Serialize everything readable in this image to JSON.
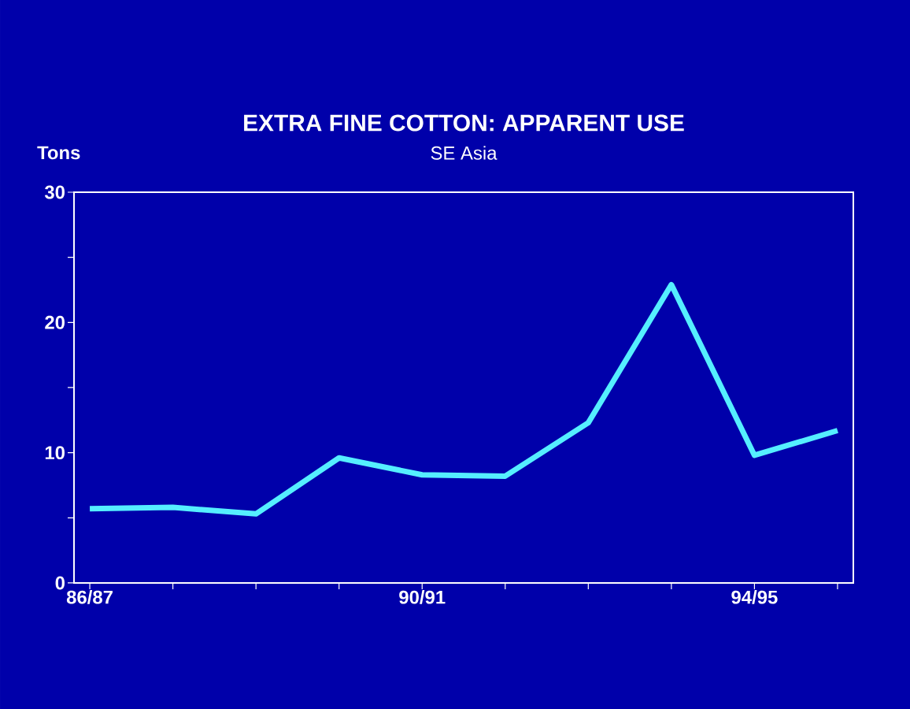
{
  "chart_data": {
    "type": "line",
    "title": "EXTRA FINE COTTON: APPARENT USE",
    "subtitle": "SE Asia",
    "ylabel": "Tons",
    "categories": [
      "86/87",
      null,
      null,
      null,
      "90/91",
      null,
      null,
      null,
      "94/95",
      null
    ],
    "values": [
      5.7,
      5.8,
      5.3,
      9.6,
      8.3,
      8.2,
      12.3,
      22.9,
      9.8,
      11.7
    ],
    "color": "#55eeff",
    "ylim": [
      0,
      30
    ],
    "yticks": [
      0,
      {
        "value": 5,
        "label": null
      },
      10,
      {
        "value": 15,
        "label": null
      },
      20,
      {
        "value": 25,
        "label": null
      },
      30
    ]
  }
}
